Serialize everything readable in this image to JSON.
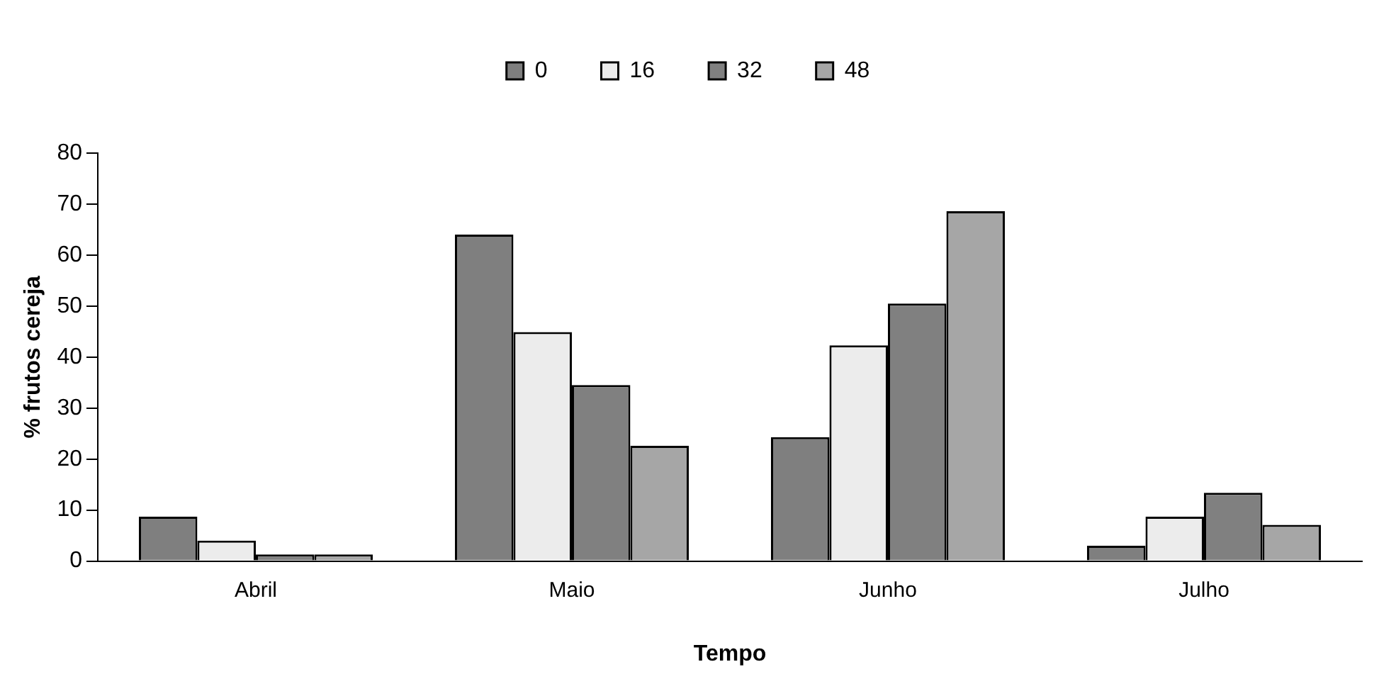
{
  "chart_data": {
    "type": "bar",
    "xlabel": "Tempo",
    "ylabel": "% frutos cereja",
    "categories": [
      "Abril",
      "Maio",
      "Junho",
      "Julho"
    ],
    "series": [
      {
        "name": "0",
        "color": "#7f7f7f",
        "values": [
          8.7,
          64.0,
          24.3,
          3.0
        ]
      },
      {
        "name": "16",
        "color": "#ececec",
        "values": [
          4.0,
          44.9,
          42.3,
          8.7
        ]
      },
      {
        "name": "32",
        "color": "#808080",
        "values": [
          1.3,
          34.5,
          50.5,
          13.4
        ]
      },
      {
        "name": "48",
        "color": "#a6a6a6",
        "values": [
          1.3,
          22.6,
          68.6,
          7.1
        ]
      }
    ],
    "ylim": [
      0,
      80
    ],
    "yticks": [
      0,
      10,
      20,
      30,
      40,
      50,
      60,
      70,
      80
    ],
    "grid": false,
    "legend": "top"
  }
}
